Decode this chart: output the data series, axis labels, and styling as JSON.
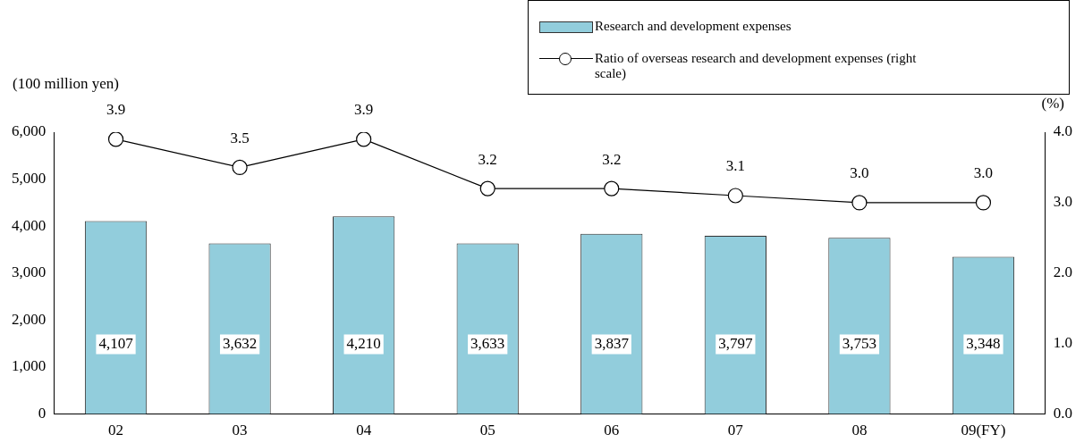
{
  "chart_data": {
    "type": "bar",
    "categories": [
      "02",
      "03",
      "04",
      "05",
      "06",
      "07",
      "08",
      "09(FY)"
    ],
    "ylabel": "(100 million yen)",
    "y2label": "(%)",
    "series": [
      {
        "name": "Research and development expenses",
        "color": "#92cddc",
        "values": [
          4107,
          3632,
          4210,
          3633,
          3837,
          3797,
          3753,
          3348
        ],
        "value_labels": [
          "4,107",
          "3,632",
          "4,210",
          "3,633",
          "3,837",
          "3,797",
          "3,753",
          "3,348"
        ]
      },
      {
        "name": "Ratio of overseas research  and development expenses (right scale)",
        "type": "line",
        "axis": "y2",
        "color": "#000000",
        "values": [
          3.9,
          3.5,
          3.9,
          3.2,
          3.2,
          3.1,
          3.0,
          3.0
        ],
        "value_labels": [
          "3.9",
          "3.5",
          "3.9",
          "3.2",
          "3.2",
          "3.1",
          "3.0",
          "3.0"
        ]
      }
    ],
    "ylim": [
      0,
      6000
    ],
    "yticks": [
      0,
      {
        "value": 1000,
        "label": "1,000"
      },
      {
        "value": 2000,
        "label": "2,000"
      },
      {
        "value": 3000,
        "label": "3,000"
      },
      {
        "value": 4000,
        "label": "4,000"
      },
      {
        "value": 5000,
        "label": "5,000"
      },
      {
        "value": 6000,
        "label": "6,000"
      }
    ],
    "y2lim": [
      0,
      4
    ],
    "y2ticks": [
      {
        "value": 0,
        "label": "0.0"
      },
      {
        "value": 1,
        "label": "1.0"
      },
      {
        "value": 2,
        "label": "2.0"
      },
      {
        "value": 3,
        "label": "3.0"
      },
      {
        "value": 4,
        "label": "4.0"
      }
    ],
    "marker": "circle",
    "line_style": "solid",
    "grid": false,
    "legend": "top right"
  }
}
